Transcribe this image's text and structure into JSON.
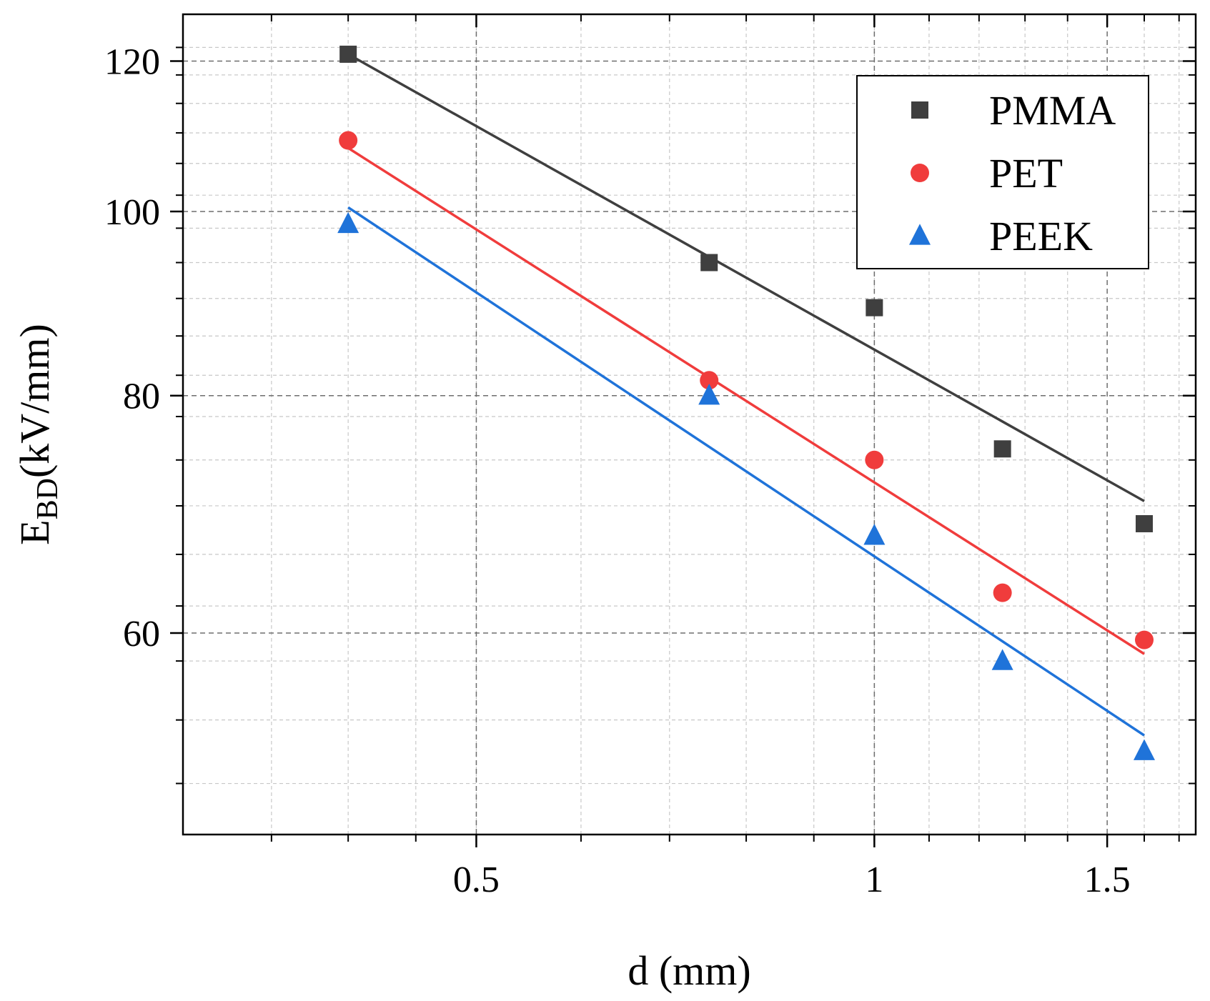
{
  "chart_data": {
    "type": "scatter",
    "x_scale": "log",
    "y_scale": "log",
    "xlabel": "d (mm)",
    "ylabel_main": "E",
    "ylabel_sub": "BD",
    "ylabel_rest": "(kV/mm)",
    "xlim": [
      0.3,
      1.75
    ],
    "ylim": [
      47,
      127
    ],
    "x_ticks": [
      {
        "value": 0.5,
        "label": "0.5"
      },
      {
        "value": 1,
        "label": "1"
      },
      {
        "value": 1.5,
        "label": "1.5"
      }
    ],
    "y_ticks": [
      {
        "value": 60,
        "label": "60"
      },
      {
        "value": 80,
        "label": "80"
      },
      {
        "value": 100,
        "label": "100"
      },
      {
        "value": 120,
        "label": "120"
      }
    ],
    "grid": true,
    "legend_position": "top-right",
    "series": [
      {
        "name": "PMMA",
        "marker": "square",
        "color": "#3f3f3f",
        "x": [
          0.4,
          0.75,
          1.0,
          1.25,
          1.6
        ],
        "y": [
          121,
          94,
          89,
          75,
          68.5
        ],
        "fit": {
          "x": [
            0.4,
            1.6
          ],
          "y": [
            121,
            70.4
          ]
        }
      },
      {
        "name": "PET",
        "marker": "circle",
        "color": "#f03c3c",
        "x": [
          0.4,
          0.75,
          1.0,
          1.25,
          1.6
        ],
        "y": [
          109,
          81.5,
          74,
          63,
          59.5
        ],
        "fit": {
          "x": [
            0.4,
            1.6
          ],
          "y": [
            108,
            58.5
          ]
        }
      },
      {
        "name": "PEEK",
        "marker": "triangle",
        "color": "#1f73d9",
        "x": [
          0.4,
          0.75,
          1.0,
          1.25,
          1.6
        ],
        "y": [
          98.5,
          80,
          67.5,
          58,
          52
        ],
        "fit": {
          "x": [
            0.4,
            1.6
          ],
          "y": [
            100.5,
            53
          ]
        }
      }
    ]
  }
}
